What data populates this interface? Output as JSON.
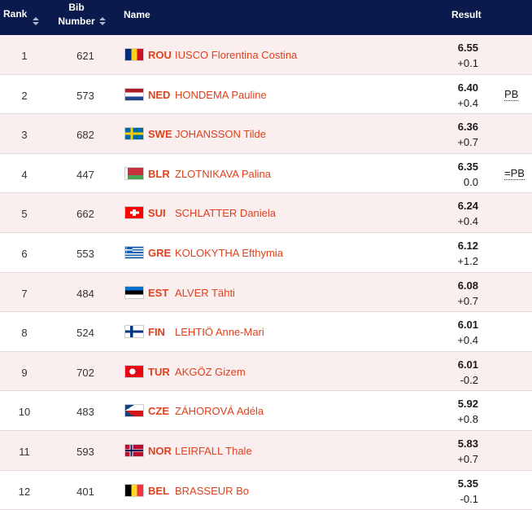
{
  "header": {
    "rank": "Rank",
    "bib_line1": "Bib",
    "bib_line2": "Number",
    "name": "Name",
    "result": "Result"
  },
  "rows": [
    {
      "rank": "1",
      "bib": "621",
      "country": "ROU",
      "athlete": "IUSCO Florentina Costina",
      "mark": "6.55",
      "wind": "+0.1",
      "record": "",
      "flag": "romania-flag"
    },
    {
      "rank": "2",
      "bib": "573",
      "country": "NED",
      "athlete": "HONDEMA Pauline",
      "mark": "6.40",
      "wind": "+0.4",
      "record": "PB",
      "flag": "netherlands-flag"
    },
    {
      "rank": "3",
      "bib": "682",
      "country": "SWE",
      "athlete": "JOHANSSON Tilde",
      "mark": "6.36",
      "wind": "+0.7",
      "record": "",
      "flag": "sweden-flag"
    },
    {
      "rank": "4",
      "bib": "447",
      "country": "BLR",
      "athlete": "ZLOTNIKAVA Palina",
      "mark": "6.35",
      "wind": "0.0",
      "record": "=PB",
      "flag": "belarus-flag"
    },
    {
      "rank": "5",
      "bib": "662",
      "country": "SUI",
      "athlete": "SCHLATTER Daniela",
      "mark": "6.24",
      "wind": "+0.4",
      "record": "",
      "flag": "switzerland-flag"
    },
    {
      "rank": "6",
      "bib": "553",
      "country": "GRE",
      "athlete": "KOLOKYTHA Efthymia",
      "mark": "6.12",
      "wind": "+1.2",
      "record": "",
      "flag": "greece-flag"
    },
    {
      "rank": "7",
      "bib": "484",
      "country": "EST",
      "athlete": "ALVER Tähti",
      "mark": "6.08",
      "wind": "+0.7",
      "record": "",
      "flag": "estonia-flag"
    },
    {
      "rank": "8",
      "bib": "524",
      "country": "FIN",
      "athlete": "LEHTIÖ Anne-Mari",
      "mark": "6.01",
      "wind": "+0.4",
      "record": "",
      "flag": "finland-flag"
    },
    {
      "rank": "9",
      "bib": "702",
      "country": "TUR",
      "athlete": "AKGÖZ Gizem",
      "mark": "6.01",
      "wind": "-0.2",
      "record": "",
      "flag": "turkey-flag"
    },
    {
      "rank": "10",
      "bib": "483",
      "country": "CZE",
      "athlete": "ZÁHOROVÁ Adéla",
      "mark": "5.92",
      "wind": "+0.8",
      "record": "",
      "flag": "czechia-flag"
    },
    {
      "rank": "11",
      "bib": "593",
      "country": "NOR",
      "athlete": "LEIRFALL Thale",
      "mark": "5.83",
      "wind": "+0.7",
      "record": "",
      "flag": "norway-flag"
    },
    {
      "rank": "12",
      "bib": "401",
      "country": "BEL",
      "athlete": "BRASSEUR Bo",
      "mark": "5.35",
      "wind": "-0.1",
      "record": "",
      "flag": "belgium-flag"
    }
  ]
}
